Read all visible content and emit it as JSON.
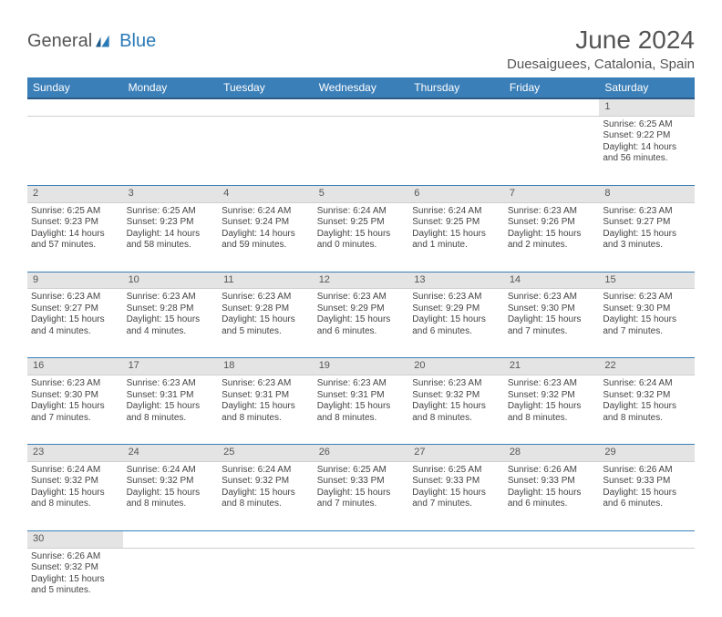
{
  "brand": {
    "general": "General",
    "blue": "Blue"
  },
  "title": "June 2024",
  "location": "Duesaiguees, Catalonia, Spain",
  "colors": {
    "header_bg": "#3b7fb8",
    "header_border": "#2a5a85",
    "daynum_bg": "#e4e4e4",
    "row_border": "#3b7fb8",
    "text": "#444",
    "title_text": "#555"
  },
  "days": [
    "Sunday",
    "Monday",
    "Tuesday",
    "Wednesday",
    "Thursday",
    "Friday",
    "Saturday"
  ],
  "weeks": [
    [
      null,
      null,
      null,
      null,
      null,
      null,
      {
        "n": "1",
        "sr": "Sunrise: 6:25 AM",
        "ss": "Sunset: 9:22 PM",
        "d1": "Daylight: 14 hours",
        "d2": "and 56 minutes."
      }
    ],
    [
      {
        "n": "2",
        "sr": "Sunrise: 6:25 AM",
        "ss": "Sunset: 9:23 PM",
        "d1": "Daylight: 14 hours",
        "d2": "and 57 minutes."
      },
      {
        "n": "3",
        "sr": "Sunrise: 6:25 AM",
        "ss": "Sunset: 9:23 PM",
        "d1": "Daylight: 14 hours",
        "d2": "and 58 minutes."
      },
      {
        "n": "4",
        "sr": "Sunrise: 6:24 AM",
        "ss": "Sunset: 9:24 PM",
        "d1": "Daylight: 14 hours",
        "d2": "and 59 minutes."
      },
      {
        "n": "5",
        "sr": "Sunrise: 6:24 AM",
        "ss": "Sunset: 9:25 PM",
        "d1": "Daylight: 15 hours",
        "d2": "and 0 minutes."
      },
      {
        "n": "6",
        "sr": "Sunrise: 6:24 AM",
        "ss": "Sunset: 9:25 PM",
        "d1": "Daylight: 15 hours",
        "d2": "and 1 minute."
      },
      {
        "n": "7",
        "sr": "Sunrise: 6:23 AM",
        "ss": "Sunset: 9:26 PM",
        "d1": "Daylight: 15 hours",
        "d2": "and 2 minutes."
      },
      {
        "n": "8",
        "sr": "Sunrise: 6:23 AM",
        "ss": "Sunset: 9:27 PM",
        "d1": "Daylight: 15 hours",
        "d2": "and 3 minutes."
      }
    ],
    [
      {
        "n": "9",
        "sr": "Sunrise: 6:23 AM",
        "ss": "Sunset: 9:27 PM",
        "d1": "Daylight: 15 hours",
        "d2": "and 4 minutes."
      },
      {
        "n": "10",
        "sr": "Sunrise: 6:23 AM",
        "ss": "Sunset: 9:28 PM",
        "d1": "Daylight: 15 hours",
        "d2": "and 4 minutes."
      },
      {
        "n": "11",
        "sr": "Sunrise: 6:23 AM",
        "ss": "Sunset: 9:28 PM",
        "d1": "Daylight: 15 hours",
        "d2": "and 5 minutes."
      },
      {
        "n": "12",
        "sr": "Sunrise: 6:23 AM",
        "ss": "Sunset: 9:29 PM",
        "d1": "Daylight: 15 hours",
        "d2": "and 6 minutes."
      },
      {
        "n": "13",
        "sr": "Sunrise: 6:23 AM",
        "ss": "Sunset: 9:29 PM",
        "d1": "Daylight: 15 hours",
        "d2": "and 6 minutes."
      },
      {
        "n": "14",
        "sr": "Sunrise: 6:23 AM",
        "ss": "Sunset: 9:30 PM",
        "d1": "Daylight: 15 hours",
        "d2": "and 7 minutes."
      },
      {
        "n": "15",
        "sr": "Sunrise: 6:23 AM",
        "ss": "Sunset: 9:30 PM",
        "d1": "Daylight: 15 hours",
        "d2": "and 7 minutes."
      }
    ],
    [
      {
        "n": "16",
        "sr": "Sunrise: 6:23 AM",
        "ss": "Sunset: 9:30 PM",
        "d1": "Daylight: 15 hours",
        "d2": "and 7 minutes."
      },
      {
        "n": "17",
        "sr": "Sunrise: 6:23 AM",
        "ss": "Sunset: 9:31 PM",
        "d1": "Daylight: 15 hours",
        "d2": "and 8 minutes."
      },
      {
        "n": "18",
        "sr": "Sunrise: 6:23 AM",
        "ss": "Sunset: 9:31 PM",
        "d1": "Daylight: 15 hours",
        "d2": "and 8 minutes."
      },
      {
        "n": "19",
        "sr": "Sunrise: 6:23 AM",
        "ss": "Sunset: 9:31 PM",
        "d1": "Daylight: 15 hours",
        "d2": "and 8 minutes."
      },
      {
        "n": "20",
        "sr": "Sunrise: 6:23 AM",
        "ss": "Sunset: 9:32 PM",
        "d1": "Daylight: 15 hours",
        "d2": "and 8 minutes."
      },
      {
        "n": "21",
        "sr": "Sunrise: 6:23 AM",
        "ss": "Sunset: 9:32 PM",
        "d1": "Daylight: 15 hours",
        "d2": "and 8 minutes."
      },
      {
        "n": "22",
        "sr": "Sunrise: 6:24 AM",
        "ss": "Sunset: 9:32 PM",
        "d1": "Daylight: 15 hours",
        "d2": "and 8 minutes."
      }
    ],
    [
      {
        "n": "23",
        "sr": "Sunrise: 6:24 AM",
        "ss": "Sunset: 9:32 PM",
        "d1": "Daylight: 15 hours",
        "d2": "and 8 minutes."
      },
      {
        "n": "24",
        "sr": "Sunrise: 6:24 AM",
        "ss": "Sunset: 9:32 PM",
        "d1": "Daylight: 15 hours",
        "d2": "and 8 minutes."
      },
      {
        "n": "25",
        "sr": "Sunrise: 6:24 AM",
        "ss": "Sunset: 9:32 PM",
        "d1": "Daylight: 15 hours",
        "d2": "and 8 minutes."
      },
      {
        "n": "26",
        "sr": "Sunrise: 6:25 AM",
        "ss": "Sunset: 9:33 PM",
        "d1": "Daylight: 15 hours",
        "d2": "and 7 minutes."
      },
      {
        "n": "27",
        "sr": "Sunrise: 6:25 AM",
        "ss": "Sunset: 9:33 PM",
        "d1": "Daylight: 15 hours",
        "d2": "and 7 minutes."
      },
      {
        "n": "28",
        "sr": "Sunrise: 6:26 AM",
        "ss": "Sunset: 9:33 PM",
        "d1": "Daylight: 15 hours",
        "d2": "and 6 minutes."
      },
      {
        "n": "29",
        "sr": "Sunrise: 6:26 AM",
        "ss": "Sunset: 9:33 PM",
        "d1": "Daylight: 15 hours",
        "d2": "and 6 minutes."
      }
    ],
    [
      {
        "n": "30",
        "sr": "Sunrise: 6:26 AM",
        "ss": "Sunset: 9:32 PM",
        "d1": "Daylight: 15 hours",
        "d2": "and 5 minutes."
      },
      null,
      null,
      null,
      null,
      null,
      null
    ]
  ]
}
